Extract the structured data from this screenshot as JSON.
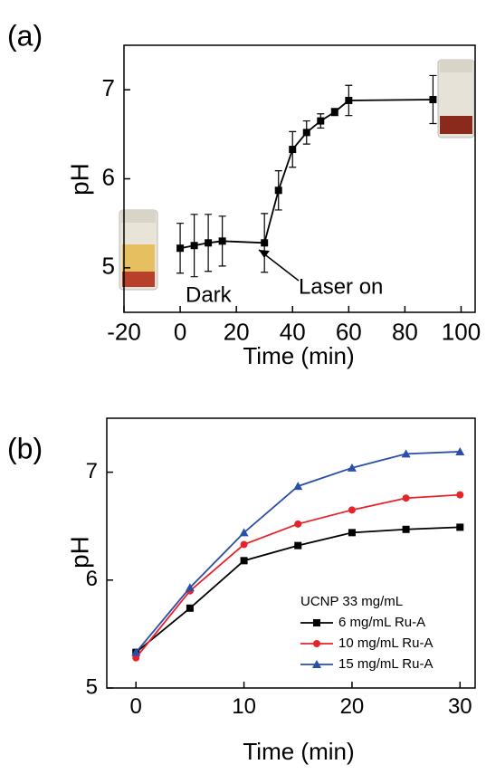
{
  "chart_data": [
    {
      "type": "line",
      "panel_label": "(a)",
      "xlabel": "Time (min)",
      "ylabel": "pH",
      "annotations": [
        "Dark",
        "Laser on"
      ],
      "xlim": [
        -20,
        105
      ],
      "ylim": [
        4.5,
        7.5
      ],
      "xticks": [
        -20,
        0,
        20,
        40,
        60,
        80,
        100
      ],
      "yticks": [
        5,
        6,
        7
      ],
      "series": [
        {
          "color": "#000000",
          "marker": "square",
          "x": [
            0,
            5,
            10,
            15,
            30,
            35,
            40,
            45,
            50,
            55,
            60,
            90
          ],
          "values": [
            5.22,
            5.25,
            5.28,
            5.3,
            5.28,
            5.87,
            6.33,
            6.52,
            6.65,
            6.75,
            6.88,
            6.89
          ],
          "errors": [
            0.28,
            0.35,
            0.32,
            0.28,
            0.33,
            0.22,
            0.2,
            0.13,
            0.08,
            0.04,
            0.17,
            0.27
          ]
        }
      ]
    },
    {
      "type": "line",
      "panel_label": "(b)",
      "xlabel": "Time (min)",
      "ylabel": "pH",
      "legend_title": "UCNP 33 mg/mL",
      "xlim": [
        -2.7,
        31.4
      ],
      "ylim": [
        5,
        7.5
      ],
      "xticks": [
        0,
        10,
        20,
        30
      ],
      "yticks": [
        5,
        6,
        7
      ],
      "x": [
        0,
        5,
        10,
        15,
        20,
        25,
        30
      ],
      "series": [
        {
          "name": "6 mg/mL Ru-A",
          "color": "#000000",
          "marker": "square",
          "values": [
            5.33,
            5.74,
            6.18,
            6.32,
            6.44,
            6.47,
            6.49
          ]
        },
        {
          "name": "10 mg/mL Ru-A",
          "color": "#e8222a",
          "marker": "circle",
          "values": [
            5.28,
            5.9,
            6.33,
            6.52,
            6.65,
            6.76,
            6.79
          ]
        },
        {
          "name": "15 mg/mL Ru-A",
          "color": "#2a4fa8",
          "marker": "triangle",
          "values": [
            5.33,
            5.93,
            6.44,
            6.87,
            7.04,
            7.17,
            7.19
          ]
        }
      ]
    }
  ]
}
